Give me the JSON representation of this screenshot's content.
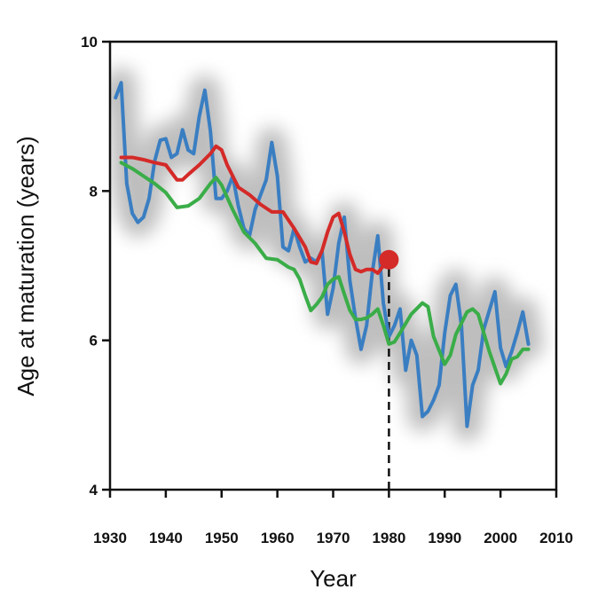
{
  "chart_data": {
    "type": "line",
    "title": "",
    "xlabel": "Year",
    "ylabel": "Age at maturation (years)",
    "xlim": [
      1930,
      2010
    ],
    "ylim": [
      4,
      10
    ],
    "x_ticks": [
      1930,
      1940,
      1950,
      1960,
      1970,
      1980,
      1990,
      2000,
      2010
    ],
    "y_ticks": [
      4,
      6,
      8,
      10
    ],
    "x_tick_labels": [
      "1930",
      "1940",
      "1950",
      "1960",
      "1970",
      "1980",
      "1990",
      "2000",
      "2010"
    ],
    "y_tick_labels": [
      "4",
      "6",
      "8",
      "10"
    ],
    "grid": false,
    "legend": "none",
    "series": [
      {
        "color": "#3a7ec2",
        "x": [
          1931,
          1932,
          1933,
          1934,
          1935,
          1936,
          1937,
          1938,
          1939,
          1940,
          1941,
          1942,
          1943,
          1944,
          1945,
          1946,
          1947,
          1948,
          1949,
          1950,
          1951,
          1952,
          1953,
          1954,
          1955,
          1956,
          1957,
          1958,
          1959,
          1960,
          1961,
          1962,
          1963,
          1964,
          1965,
          1966,
          1967,
          1968,
          1969,
          1970,
          1971,
          1972,
          1973,
          1974,
          1975,
          1976,
          1977,
          1978,
          1979,
          1980,
          1981,
          1982,
          1983,
          1984,
          1985,
          1986,
          1987,
          1988,
          1989,
          1990,
          1991,
          1992,
          1993,
          1994,
          1995,
          1996,
          1997,
          1998,
          1999,
          2000,
          2001,
          2002,
          2003,
          2004,
          2005
        ],
        "values": [
          9.25,
          9.45,
          8.1,
          7.7,
          7.58,
          7.65,
          7.9,
          8.4,
          8.68,
          8.7,
          8.45,
          8.5,
          8.82,
          8.55,
          8.5,
          9.0,
          9.35,
          8.8,
          7.9,
          7.9,
          8.0,
          8.2,
          7.8,
          7.5,
          7.4,
          7.75,
          7.95,
          8.15,
          8.65,
          8.2,
          7.25,
          7.2,
          7.5,
          7.25,
          7.05,
          7.1,
          7.05,
          7.2,
          6.35,
          6.7,
          7.3,
          7.65,
          6.8,
          6.3,
          5.88,
          6.2,
          6.9,
          7.4,
          6.5,
          6.05,
          6.2,
          6.42,
          5.6,
          6.0,
          5.8,
          4.98,
          5.05,
          5.2,
          5.4,
          6.1,
          6.6,
          6.75,
          6.2,
          4.85,
          5.4,
          5.6,
          6.15,
          6.4,
          6.65,
          5.9,
          5.65,
          5.85,
          6.1,
          6.38,
          5.95
        ]
      },
      {
        "color": "#d42a28",
        "x": [
          1932,
          1934,
          1936,
          1938,
          1940,
          1942,
          1943,
          1944,
          1946,
          1948,
          1949,
          1950,
          1951,
          1953,
          1955,
          1957,
          1959,
          1961,
          1963,
          1965,
          1966,
          1967,
          1968,
          1969,
          1970,
          1971,
          1972,
          1973,
          1974,
          1975,
          1976,
          1977,
          1978,
          1979,
          1980
        ],
        "values": [
          8.45,
          8.45,
          8.42,
          8.38,
          8.35,
          8.15,
          8.15,
          8.22,
          8.35,
          8.5,
          8.6,
          8.55,
          8.35,
          8.05,
          7.95,
          7.82,
          7.72,
          7.72,
          7.5,
          7.25,
          7.05,
          7.03,
          7.2,
          7.45,
          7.65,
          7.7,
          7.45,
          7.15,
          6.95,
          6.92,
          6.95,
          6.95,
          6.9,
          7.0,
          7.08
        ]
      },
      {
        "color": "#3aad48",
        "x": [
          1932,
          1934,
          1936,
          1938,
          1940,
          1942,
          1944,
          1946,
          1948,
          1949,
          1950,
          1952,
          1954,
          1956,
          1958,
          1960,
          1962,
          1963,
          1964,
          1965,
          1966,
          1967,
          1968,
          1969,
          1970,
          1971,
          1972,
          1973,
          1974,
          1975,
          1976,
          1977,
          1978,
          1979,
          1980,
          1981,
          1982,
          1984,
          1986,
          1987,
          1988,
          1990,
          1991,
          1992,
          1994,
          1995,
          1996,
          1998,
          2000,
          2001,
          2002,
          2003,
          2004,
          2005
        ],
        "values": [
          8.38,
          8.3,
          8.2,
          8.1,
          7.98,
          7.78,
          7.8,
          7.9,
          8.1,
          8.18,
          8.08,
          7.75,
          7.45,
          7.3,
          7.1,
          7.08,
          6.98,
          6.95,
          6.82,
          6.6,
          6.4,
          6.48,
          6.58,
          6.75,
          6.82,
          6.85,
          6.62,
          6.4,
          6.28,
          6.28,
          6.3,
          6.35,
          6.42,
          6.2,
          5.95,
          5.98,
          6.1,
          6.35,
          6.5,
          6.45,
          6.05,
          5.68,
          5.8,
          6.08,
          6.38,
          6.42,
          6.35,
          5.85,
          5.42,
          5.55,
          5.75,
          5.78,
          5.88,
          5.88
        ]
      }
    ],
    "marker": {
      "x": 1980,
      "y": 7.08,
      "color": "#d42a28"
    },
    "reference_line": {
      "x": 1980,
      "y_from": 4,
      "y_to": 7.08,
      "style": "dashed",
      "color": "#111111"
    }
  }
}
